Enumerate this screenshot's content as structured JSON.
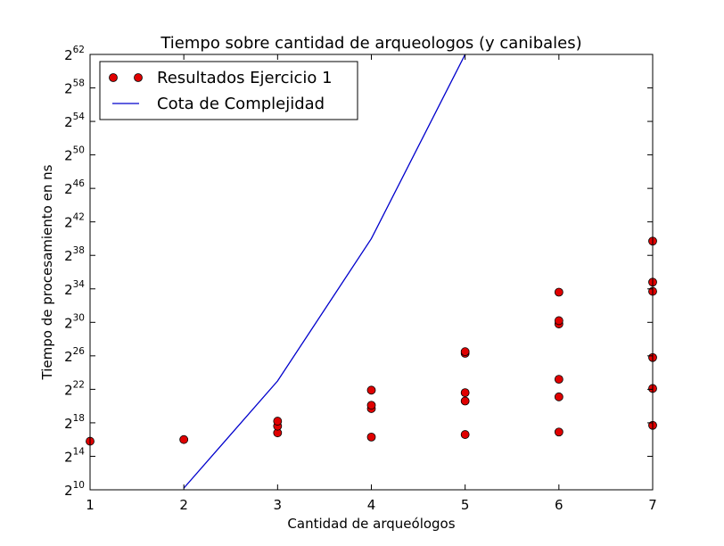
{
  "chart_data": {
    "type": "scatter",
    "title": "Tiempo sobre cantidad de arqueologos (y canibales)",
    "xlabel": "Cantidad de arqueólogos",
    "ylabel": "Tiempo de procesamiento en ns",
    "xlim": [
      1,
      7
    ],
    "ylim_log2": [
      10,
      62
    ],
    "y_scale": "log2",
    "grid": false,
    "legend_position": "top-left",
    "x_ticks": [
      {
        "value": 1,
        "label": "1"
      },
      {
        "value": 2,
        "label": "2"
      },
      {
        "value": 3,
        "label": "3"
      },
      {
        "value": 4,
        "label": "4"
      },
      {
        "value": 5,
        "label": "5"
      },
      {
        "value": 6,
        "label": "6"
      },
      {
        "value": 7,
        "label": "7"
      }
    ],
    "y_ticks": [
      {
        "exp": 10,
        "base": "2",
        "sup": "10"
      },
      {
        "exp": 14,
        "base": "2",
        "sup": "14"
      },
      {
        "exp": 18,
        "base": "2",
        "sup": "18"
      },
      {
        "exp": 22,
        "base": "2",
        "sup": "22"
      },
      {
        "exp": 26,
        "base": "2",
        "sup": "26"
      },
      {
        "exp": 30,
        "base": "2",
        "sup": "30"
      },
      {
        "exp": 34,
        "base": "2",
        "sup": "34"
      },
      {
        "exp": 38,
        "base": "2",
        "sup": "38"
      },
      {
        "exp": 42,
        "base": "2",
        "sup": "42"
      },
      {
        "exp": 46,
        "base": "2",
        "sup": "46"
      },
      {
        "exp": 50,
        "base": "2",
        "sup": "50"
      },
      {
        "exp": 54,
        "base": "2",
        "sup": "54"
      },
      {
        "exp": 58,
        "base": "2",
        "sup": "58"
      },
      {
        "exp": 62,
        "base": "2",
        "sup": "62"
      }
    ],
    "series": [
      {
        "name": "Resultados Ejercicio 1",
        "kind": "scatter",
        "color": "#e00000",
        "points_log2": [
          [
            1,
            15.8
          ],
          [
            2,
            16.0
          ],
          [
            3,
            16.8
          ],
          [
            3,
            17.6
          ],
          [
            3,
            18.2
          ],
          [
            4,
            16.3
          ],
          [
            4,
            19.7
          ],
          [
            4,
            20.1
          ],
          [
            4,
            21.9
          ],
          [
            5,
            16.6
          ],
          [
            5,
            20.6
          ],
          [
            5,
            21.6
          ],
          [
            5,
            26.3
          ],
          [
            5,
            26.5
          ],
          [
            6,
            16.9
          ],
          [
            6,
            21.1
          ],
          [
            6,
            23.2
          ],
          [
            6,
            29.8
          ],
          [
            6,
            30.2
          ],
          [
            6,
            33.6
          ],
          [
            7,
            17.7
          ],
          [
            7,
            22.1
          ],
          [
            7,
            25.8
          ],
          [
            7,
            33.7
          ],
          [
            7,
            34.8
          ],
          [
            7,
            39.7
          ]
        ]
      },
      {
        "name": "Cota de Complejidad",
        "kind": "line",
        "color": "#0000cc",
        "points_log2": [
          [
            2,
            10.2
          ],
          [
            3,
            23.0
          ],
          [
            4,
            40.0
          ],
          [
            5,
            62.0
          ]
        ]
      }
    ]
  }
}
